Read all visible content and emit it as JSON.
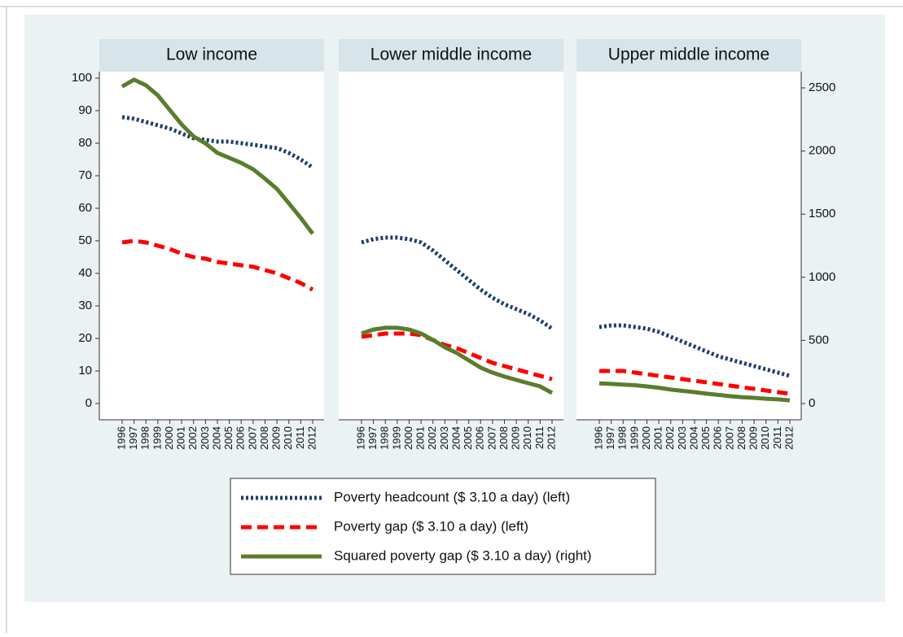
{
  "chart_data": [
    {
      "type": "line",
      "title": "Low income",
      "categories": [
        "1996",
        "1997",
        "1998",
        "1999",
        "2000",
        "2001",
        "2002",
        "2003",
        "2004",
        "2005",
        "2006",
        "2007",
        "2008",
        "2009",
        "2010",
        "2011",
        "2012"
      ],
      "ylim": [
        0,
        100
      ],
      "yticks": [
        0,
        10,
        20,
        30,
        40,
        50,
        60,
        70,
        80,
        90,
        100
      ],
      "series": [
        {
          "name": "Poverty headcount ($ 3.10 a day) (left)",
          "color": "#1f3d6e",
          "dash": "dotted",
          "axis": "y",
          "values": [
            88,
            87.5,
            86.5,
            85.5,
            84.5,
            83,
            81.5,
            81,
            80.5,
            80.5,
            80,
            79.5,
            79,
            78.5,
            77,
            75,
            72.5
          ]
        },
        {
          "name": "Poverty gap ($ 3.10 a day) (left)",
          "color": "#ff0000",
          "dash": "dashed",
          "axis": "y",
          "values": [
            49.5,
            50,
            49.5,
            48.5,
            47.5,
            46,
            45,
            44.5,
            43.5,
            43,
            42.5,
            42,
            41,
            40,
            38.5,
            37,
            35
          ]
        },
        {
          "name": "Squared poverty gap ($ 3.10 a day) (right)",
          "color": "#5a7d2d",
          "dash": "solid",
          "axis": "y2",
          "values": [
            2510,
            2565,
            2520,
            2440,
            2325,
            2210,
            2115,
            2060,
            1985,
            1945,
            1905,
            1855,
            1780,
            1700,
            1585,
            1470,
            1345
          ]
        }
      ]
    },
    {
      "type": "line",
      "title": "Lower middle income",
      "categories": [
        "1996",
        "1997",
        "1998",
        "1999",
        "2000",
        "2001",
        "2002",
        "2003",
        "2004",
        "2005",
        "2006",
        "2007",
        "2008",
        "2009",
        "2010",
        "2011",
        "2012"
      ],
      "series": [
        {
          "color": "#1f3d6e",
          "dash": "dotted",
          "axis": "y",
          "values": [
            49.5,
            50.5,
            51,
            51,
            50.5,
            49.5,
            47,
            44,
            41,
            38,
            35,
            32.5,
            30.5,
            29,
            27.5,
            25.5,
            23
          ]
        },
        {
          "color": "#ff0000",
          "dash": "dashed",
          "axis": "y",
          "values": [
            20.5,
            21,
            21.5,
            21.5,
            21.5,
            21,
            19.5,
            18,
            17,
            15.5,
            14,
            12.5,
            11.5,
            10.5,
            9.5,
            8.5,
            7.5
          ]
        },
        {
          "color": "#5a7d2d",
          "dash": "solid",
          "axis": "y2",
          "values": [
            555,
            586,
            600,
            600,
            586,
            555,
            503,
            445,
            400,
            342,
            284,
            245,
            213,
            187,
            161,
            135,
            84
          ]
        }
      ]
    },
    {
      "type": "line",
      "title": "Upper middle income",
      "categories": [
        "1996",
        "1997",
        "1998",
        "1999",
        "2000",
        "2001",
        "2002",
        "2003",
        "2004",
        "2005",
        "2006",
        "2007",
        "2008",
        "2009",
        "2010",
        "2011",
        "2012"
      ],
      "y2lim": [
        0,
        2500
      ],
      "y2ticks": [
        0,
        500,
        1000,
        1500,
        2000,
        2500
      ],
      "series": [
        {
          "color": "#1f3d6e",
          "dash": "dotted",
          "axis": "y",
          "values": [
            23.5,
            24,
            24,
            23.5,
            23,
            22,
            20.5,
            19,
            17.5,
            16,
            14.5,
            13.5,
            12.5,
            11.5,
            10.5,
            9.5,
            8.5
          ]
        },
        {
          "color": "#ff0000",
          "dash": "dashed",
          "axis": "y",
          "values": [
            10,
            10,
            10,
            9.5,
            9,
            8.5,
            8,
            7.5,
            7,
            6.5,
            6,
            5.5,
            5,
            4.5,
            4,
            3.5,
            3
          ]
        },
        {
          "color": "#5a7d2d",
          "dash": "solid",
          "axis": "y2",
          "values": [
            160,
            155,
            150,
            145,
            135,
            125,
            110,
            100,
            90,
            78,
            68,
            58,
            50,
            45,
            38,
            33,
            25
          ]
        }
      ]
    }
  ]
}
